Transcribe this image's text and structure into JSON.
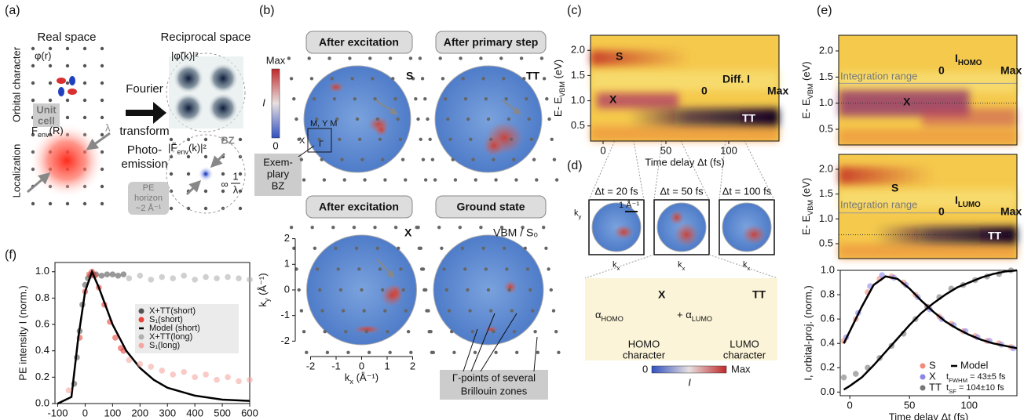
{
  "figure": {
    "panel_labels": [
      "(a)",
      "(b)",
      "(c)",
      "(d)",
      "(e)",
      "(f)"
    ],
    "a": {
      "real_space": "Real space",
      "reciprocal_space": "Reciprocal space",
      "orbital_character": "Orbital character",
      "localization": "Localization",
      "phi_r": "φ(r)",
      "phi_k": "|φ̃(k)|²",
      "unit_cell": [
        "Unit",
        "cell"
      ],
      "bz": "BZ",
      "fourier": [
        "Fourier",
        "transform"
      ],
      "photoemission": [
        "Photo-",
        "emission"
      ],
      "f_env_r": [
        "F",
        "env",
        "(R)"
      ],
      "f_env_k": [
        "|F̃",
        "env",
        "(k)|²"
      ],
      "lambda": "λ",
      "inv_lambda": [
        "1",
        "λ"
      ],
      "infinity": "∞",
      "pe_horizon": [
        "PE",
        "horizon",
        "~2 Å⁻¹"
      ]
    },
    "b": {
      "titles": [
        "After excitation",
        "After primary step",
        "After excitation",
        "Ground state"
      ],
      "states": [
        "S",
        "TT",
        "X",
        "VBM / S₀"
      ],
      "colorbar": [
        "Max",
        "I",
        "0"
      ],
      "bz_labels": [
        "M, Y M",
        "X",
        "Γ"
      ],
      "exemplary": [
        "Exem-",
        "plary",
        "BZ"
      ],
      "gamma_points": [
        "Γ-points of several",
        "Brillouin zones"
      ]
    },
    "c": {
      "states": [
        "S",
        "X",
        "TT"
      ],
      "bar_title": "Diff. I",
      "bar_min": "0",
      "bar_max": "Max"
    },
    "d": {
      "delays": [
        "Δt = 20 fs",
        "Δt = 50 fs",
        "Δt = 100 fs"
      ],
      "ky": [
        "k",
        "y"
      ],
      "kx": [
        "k",
        "x"
      ],
      "scale": "1 Å⁻¹",
      "alpha_homo": [
        "α",
        "HOMO"
      ],
      "alpha_lumo": [
        "+ α",
        "LUMO"
      ],
      "homo": [
        "HOMO",
        "character"
      ],
      "lumo": [
        "LUMO",
        "character"
      ],
      "states": [
        "X",
        "TT"
      ],
      "colorbar": [
        "0",
        "Max",
        "I"
      ]
    },
    "e": {
      "homo_bar": [
        "I",
        "HOMO"
      ],
      "lumo_bar": [
        "I",
        "LUMO"
      ],
      "bar_min": "0",
      "bar_max": "Max",
      "integration": "Integration range",
      "states": [
        "X",
        "S",
        "TT"
      ],
      "t_fwhm": [
        "t",
        "FWHM",
        " = 43±5 fs"
      ],
      "t_sf": [
        "t",
        "SF",
        " = 104±10 fs"
      ]
    }
  },
  "chart_data": [
    {
      "type": "heatmap",
      "xlabel": "Time delay Δt (fs)",
      "ylabel": [
        "E- E",
        "VBM",
        " (eV)"
      ],
      "xlim": [
        -10,
        140
      ],
      "xticks": [
        0,
        50,
        100
      ],
      "ylim": [
        0.2,
        2.3
      ],
      "yticks": [
        0.5,
        {
          "value": 1,
          "label": "1.0"
        },
        1.5,
        {
          "value": 2,
          "label": "2.0"
        }
      ]
    },
    {
      "type": "heatmap",
      "ylabel": [
        "E- E",
        "VBM",
        " (eV)"
      ],
      "xlim": [
        -10,
        140
      ],
      "ylim": [
        0.2,
        2.3
      ],
      "yticks": [
        0.5,
        {
          "value": 1,
          "label": "1.0"
        },
        1.5,
        {
          "value": 2,
          "label": "2.0"
        }
      ]
    },
    {
      "type": "heatmap",
      "ylabel": [
        "E- E",
        "VBM",
        " (eV)"
      ],
      "xlim": [
        -10,
        140
      ],
      "ylim": [
        0.2,
        2.3
      ],
      "yticks": [
        0.5,
        {
          "value": 1,
          "label": "1.0"
        },
        1.5,
        {
          "value": 2,
          "label": "2.0"
        }
      ]
    },
    {
      "type": "scatter",
      "xlabel": "Time delay Δt (fs)",
      "ylabel": "I, orbital-proj. (norm.)",
      "legend": "lower right",
      "xlim": [
        -8,
        140
      ],
      "xticks": [
        0,
        50,
        100
      ],
      "ylim": [
        -0.03,
        1.0
      ],
      "yticks": [
        {
          "value": 0,
          "label": "0.0"
        },
        0.2,
        0.4,
        0.6,
        0.8,
        {
          "value": 1,
          "label": "1.0"
        }
      ],
      "series": [
        {
          "name": "S",
          "color": "#f08a7a",
          "mode": "markers",
          "x": [
            -5,
            5,
            15,
            25,
            35,
            45,
            55,
            65,
            75,
            85,
            95,
            105,
            115,
            125,
            135
          ],
          "values": [
            0.42,
            0.6,
            0.82,
            0.93,
            0.95,
            0.9,
            0.8,
            0.7,
            0.62,
            0.56,
            0.5,
            0.46,
            0.42,
            0.4,
            0.37
          ]
        },
        {
          "name": "X",
          "color": "#8a86e8",
          "mode": "markers",
          "x": [
            -3,
            7,
            17,
            27,
            37,
            47,
            57,
            67,
            77,
            87,
            97,
            107,
            117,
            127,
            137
          ],
          "values": [
            0.45,
            0.65,
            0.87,
            0.96,
            0.94,
            0.88,
            0.78,
            0.68,
            0.6,
            0.55,
            0.5,
            0.45,
            0.42,
            0.39,
            0.36
          ]
        },
        {
          "name": "TT",
          "color": "#777777",
          "mode": "markers",
          "x": [
            -5,
            5,
            15,
            25,
            35,
            45,
            55,
            65,
            75,
            85,
            95,
            105,
            115,
            125,
            135
          ],
          "values": [
            0.12,
            0.15,
            0.2,
            0.28,
            0.38,
            0.48,
            0.6,
            0.7,
            0.78,
            0.85,
            0.88,
            0.92,
            0.95,
            0.97,
            1.0
          ]
        },
        {
          "name": "Model",
          "color": "#000000",
          "mode": "line",
          "x": [
            -5,
            0,
            10,
            20,
            30,
            40,
            50,
            60,
            70,
            80,
            90,
            100,
            110,
            120,
            130,
            140
          ],
          "values": [
            0.4,
            0.5,
            0.7,
            0.88,
            0.95,
            0.93,
            0.85,
            0.75,
            0.66,
            0.58,
            0.52,
            0.47,
            0.43,
            0.4,
            0.38,
            0.36
          ]
        },
        {
          "color": "#000000",
          "mode": "line",
          "x": [
            -5,
            0,
            10,
            20,
            30,
            40,
            50,
            60,
            70,
            80,
            90,
            100,
            110,
            120,
            130,
            140
          ],
          "values": [
            0.02,
            0.05,
            0.12,
            0.22,
            0.33,
            0.44,
            0.55,
            0.65,
            0.73,
            0.8,
            0.86,
            0.9,
            0.94,
            0.97,
            0.99,
            1.0
          ]
        }
      ]
    },
    {
      "type": "scatter",
      "xlabel": "Time delay Δt (fs)",
      "ylabel": "PE intensity I (norm.)",
      "legend": "center right",
      "xlim": [
        -110,
        600
      ],
      "xticks": [
        -100,
        0,
        100,
        200,
        300,
        400,
        500,
        600
      ],
      "ylim": [
        0,
        1.07
      ],
      "yticks": [
        {
          "value": 0,
          "label": "0.0"
        },
        0.2,
        0.4,
        0.6,
        0.8,
        {
          "value": 1,
          "label": "1.0"
        }
      ],
      "series": [
        {
          "name": "X+TT(short)",
          "color": "#555555",
          "mode": "markers",
          "x": [
            -40,
            -30,
            -20,
            -10,
            0,
            10,
            20,
            30,
            40,
            60,
            80,
            100,
            120,
            140
          ],
          "values": [
            0.15,
            0.35,
            0.55,
            0.75,
            0.9,
            0.95,
            0.97,
            0.98,
            0.98,
            0.97,
            0.98,
            0.98,
            0.97,
            0.98
          ]
        },
        {
          "name": "S₁(short)",
          "color": "#e8453c",
          "mode": "markers",
          "x": [
            -20,
            0,
            15,
            25,
            35,
            50,
            70,
            90,
            110,
            130,
            140
          ],
          "values": [
            0.5,
            0.85,
            0.98,
            1.0,
            0.97,
            0.88,
            0.75,
            0.62,
            0.5,
            0.42,
            0.4
          ]
        },
        {
          "name": "Model (short)",
          "color": "#000000",
          "mode": "line",
          "x": [
            -100,
            -50,
            -25,
            0,
            25,
            50,
            100,
            150,
            200,
            250,
            300,
            400,
            500,
            600
          ],
          "values": [
            0,
            0.05,
            0.5,
            0.85,
            1.0,
            0.88,
            0.6,
            0.4,
            0.27,
            0.18,
            0.12,
            0.06,
            0.03,
            0.02
          ]
        },
        {
          "name": "X+TT(long)",
          "color": "#b0b0b0",
          "mode": "markers",
          "x": [
            160,
            200,
            240,
            280,
            320,
            360,
            400,
            440,
            480,
            520,
            560,
            600
          ],
          "values": [
            0.95,
            0.97,
            0.94,
            0.96,
            0.95,
            0.97,
            0.94,
            0.96,
            0.95,
            0.96,
            0.95,
            0.94
          ]
        },
        {
          "name": "S₁(long)",
          "color": "#f3a8a2",
          "mode": "markers",
          "x": [
            -60,
            160,
            200,
            240,
            280,
            320,
            360,
            400,
            440,
            480,
            520,
            560,
            600
          ],
          "values": [
            0.1,
            0.33,
            0.3,
            0.28,
            0.25,
            0.22,
            0.24,
            0.2,
            0.22,
            0.18,
            0.2,
            0.17,
            0.18
          ]
        }
      ]
    },
    {
      "type": "map",
      "xlabel": [
        "k",
        "x",
        " (Å⁻¹)"
      ],
      "ylabel": [
        "k",
        "y",
        " (Å⁻¹)"
      ],
      "xlim": [
        -2.6,
        2.6
      ],
      "xticks": [
        -2,
        -1,
        0,
        1,
        2
      ],
      "ylim": [
        -2.6,
        2.6
      ],
      "yticks": [
        -2,
        -1,
        0,
        1,
        2
      ]
    }
  ]
}
